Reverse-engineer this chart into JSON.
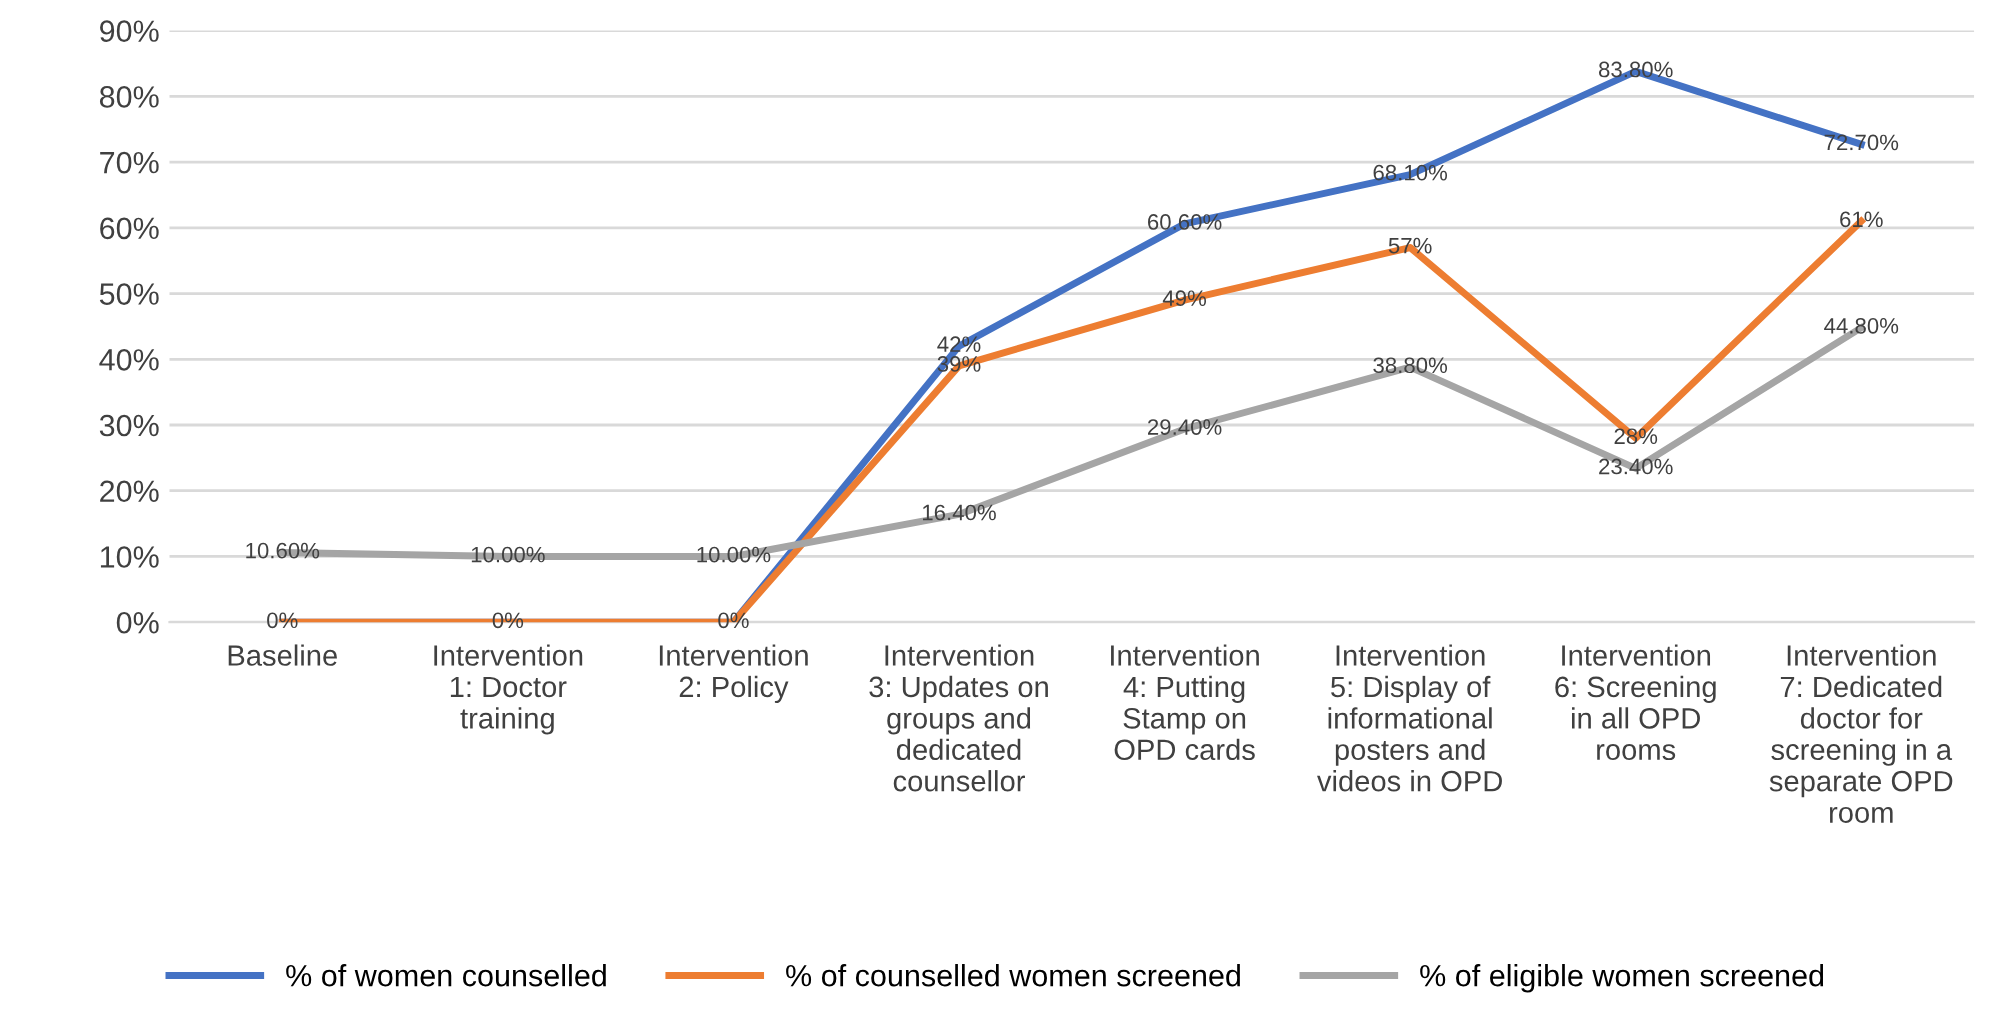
{
  "chart_data": {
    "type": "line",
    "categories": [
      "Baseline",
      "Intervention\n1: Doctor\ntraining",
      "Intervention\n2: Policy",
      "Intervention\n3: Updates on\ngroups and\ndedicated\ncounsellor",
      "Intervention\n4: Putting\nStamp on\nOPD cards",
      "Intervention\n5: Display of\ninformational\nposters and\nvideos in OPD",
      "Intervention\n6: Screening\nin all OPD\nrooms",
      "Intervention\n7: Dedicated\ndoctor for\nscreening in a\nseparate OPD\nroom"
    ],
    "series": [
      {
        "name": "% of women counselled",
        "color": "#4472c4",
        "values": [
          0,
          0,
          0,
          42,
          60.6,
          68.1,
          83.8,
          72.7
        ],
        "value_labels": [
          null,
          null,
          null,
          "42%",
          "60.60%",
          "68.10%",
          "83.80%",
          "72.70%"
        ]
      },
      {
        "name": "% of counselled women screened",
        "color": "#ed7d31",
        "values": [
          0,
          0,
          0,
          39,
          49,
          57,
          28,
          61
        ],
        "value_labels": [
          "0%",
          "0%",
          "0%",
          "39%",
          "49%",
          "57%",
          "28%",
          "61%"
        ]
      },
      {
        "name": "% of eligible women screened",
        "color": "#a5a5a5",
        "values": [
          10.6,
          10,
          10,
          16.4,
          29.4,
          38.8,
          23.4,
          44.8
        ],
        "value_labels": [
          "10.60%",
          "10.00%",
          "10.00%",
          "16.40%",
          "29.40%",
          "38.80%",
          "23.40%",
          "44.80%"
        ]
      }
    ],
    "ylim": [
      0,
      90
    ],
    "yticks": [
      {
        "value": 0,
        "label": "0%"
      },
      {
        "value": 10,
        "label": "10%"
      },
      {
        "value": 20,
        "label": "20%"
      },
      {
        "value": 30,
        "label": "30%"
      },
      {
        "value": 40,
        "label": "40%"
      },
      {
        "value": 50,
        "label": "50%"
      },
      {
        "value": 60,
        "label": "60%"
      },
      {
        "value": 70,
        "label": "70%"
      },
      {
        "value": 80,
        "label": "80%"
      },
      {
        "value": 90,
        "label": "90%"
      }
    ],
    "grid": "y",
    "legend": "bottom",
    "marker": "none",
    "line_style": "solid"
  }
}
